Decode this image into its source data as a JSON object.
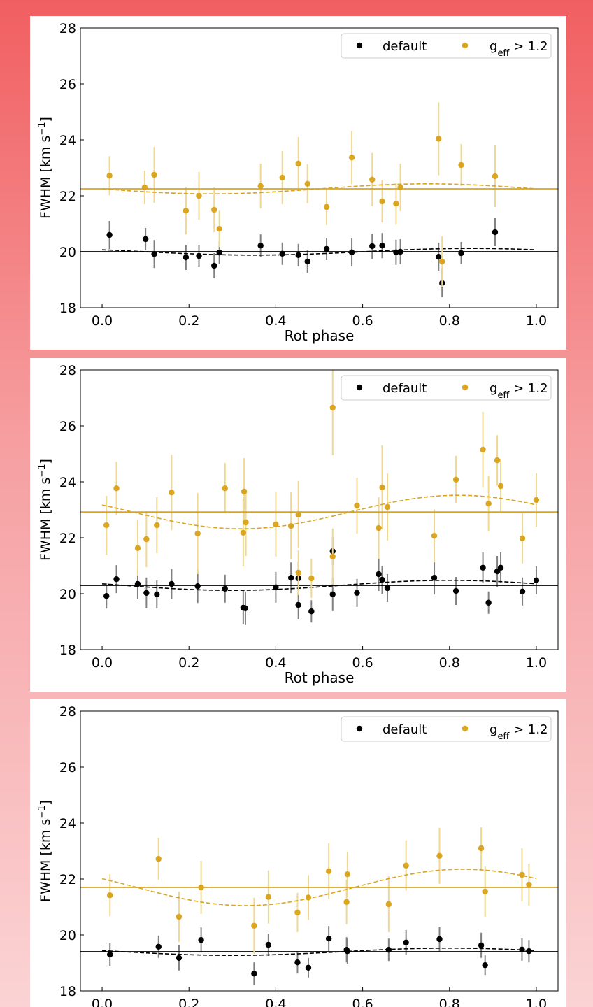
{
  "colors": {
    "default": "#000000",
    "geff": "#daa520",
    "default_err": "#808080",
    "geff_err": "#f0d890"
  },
  "chart_data": [
    {
      "type": "scatter",
      "xlabel": "Rot phase",
      "ylabel": "FWHM [km s",
      "ylabel_sup": "−1",
      "ylabel_end": "]",
      "xlim": [
        -0.05,
        1.05
      ],
      "ylim": [
        18,
        28
      ],
      "xticks": [
        "0.0",
        "0.2",
        "0.4",
        "0.6",
        "0.8",
        "1.0"
      ],
      "yticks": [
        "18",
        "20",
        "22",
        "24",
        "26",
        "28"
      ],
      "legend": {
        "default": "default",
        "geff_main": "g",
        "geff_sub": "eff",
        "geff_rest": " > 1.2",
        "position": "top-right"
      },
      "series": [
        {
          "key": "default",
          "name": "default",
          "mean": 20.0,
          "sine_amp": 0.12,
          "sine_peak": 0.85,
          "x": [
            0.017,
            0.1,
            0.12,
            0.193,
            0.223,
            0.258,
            0.27,
            0.365,
            0.415,
            0.452,
            0.473,
            0.517,
            0.575,
            0.622,
            0.645,
            0.677,
            0.687,
            0.775,
            0.783,
            0.827,
            0.905
          ],
          "y": [
            20.6,
            20.45,
            19.92,
            19.8,
            19.85,
            19.5,
            19.97,
            20.22,
            19.93,
            19.88,
            19.65,
            20.1,
            19.98,
            20.2,
            20.22,
            19.98,
            20.0,
            19.82,
            18.88,
            19.95,
            20.7
          ],
          "err": [
            0.5,
            0.4,
            0.5,
            0.45,
            0.4,
            0.45,
            0.4,
            0.4,
            0.4,
            0.4,
            0.4,
            0.4,
            0.5,
            0.45,
            0.45,
            0.45,
            0.45,
            0.5,
            0.5,
            0.4,
            0.5
          ]
        },
        {
          "key": "geff",
          "name": "g_eff > 1.2",
          "mean": 22.25,
          "sine_amp": 0.18,
          "sine_peak": 0.75,
          "x": [
            0.017,
            0.098,
            0.12,
            0.193,
            0.223,
            0.258,
            0.27,
            0.365,
            0.415,
            0.452,
            0.473,
            0.517,
            0.575,
            0.622,
            0.645,
            0.677,
            0.687,
            0.775,
            0.783,
            0.827,
            0.905
          ],
          "y": [
            22.72,
            22.3,
            22.75,
            21.47,
            22.0,
            21.5,
            20.82,
            22.35,
            22.65,
            23.15,
            22.43,
            21.6,
            23.37,
            22.58,
            21.8,
            21.72,
            22.3,
            24.04,
            19.65,
            23.1,
            22.7
          ],
          "err": [
            0.7,
            0.6,
            1.0,
            0.85,
            0.85,
            0.8,
            0.65,
            0.8,
            0.95,
            0.95,
            0.7,
            0.65,
            0.95,
            0.95,
            0.75,
            0.75,
            0.85,
            1.3,
            0.9,
            0.75,
            1.1
          ]
        }
      ]
    },
    {
      "type": "scatter",
      "xlabel": "Rot phase",
      "ylabel": "FWHM [km s",
      "ylabel_sup": "−1",
      "ylabel_end": "]",
      "xlim": [
        -0.05,
        1.05
      ],
      "ylim": [
        18,
        28
      ],
      "xticks": [
        "0.0",
        "0.2",
        "0.4",
        "0.6",
        "0.8",
        "1.0"
      ],
      "yticks": [
        "18",
        "20",
        "22",
        "24",
        "26",
        "28"
      ],
      "legend": {
        "default": "default",
        "geff_main": "g",
        "geff_sub": "eff",
        "geff_rest": " > 1.2",
        "position": "top-right"
      },
      "series": [
        {
          "key": "default",
          "name": "default",
          "mean": 20.3,
          "sine_amp": 0.18,
          "sine_peak": 0.8,
          "x": [
            0.01,
            0.033,
            0.082,
            0.102,
            0.126,
            0.16,
            0.22,
            0.283,
            0.325,
            0.33,
            0.4,
            0.435,
            0.452,
            0.452,
            0.482,
            0.531,
            0.531,
            0.587,
            0.637,
            0.645,
            0.657,
            0.765,
            0.815,
            0.877,
            0.89,
            0.91,
            0.918,
            0.968,
            1.0
          ],
          "y": [
            19.92,
            20.52,
            20.35,
            20.03,
            19.98,
            20.35,
            20.27,
            20.18,
            19.5,
            19.48,
            20.23,
            20.57,
            20.55,
            19.6,
            19.37,
            19.98,
            21.52,
            20.03,
            20.7,
            20.5,
            20.2,
            20.57,
            20.1,
            20.93,
            19.68,
            20.8,
            20.93,
            20.08,
            20.48
          ],
          "err": [
            0.45,
            0.5,
            0.55,
            0.55,
            0.5,
            0.55,
            0.6,
            0.5,
            0.6,
            0.6,
            0.55,
            0.55,
            0.6,
            0.5,
            0.4,
            0.6,
            0.5,
            0.5,
            0.6,
            0.5,
            0.5,
            0.6,
            0.5,
            0.55,
            0.4,
            0.55,
            0.55,
            0.5,
            0.5
          ]
        },
        {
          "key": "geff",
          "name": "g_eff > 1.2",
          "mean": 22.92,
          "sine_amp": 0.6,
          "sine_peak": 0.82,
          "x": [
            0.01,
            0.033,
            0.082,
            0.102,
            0.126,
            0.16,
            0.22,
            0.283,
            0.325,
            0.327,
            0.331,
            0.4,
            0.435,
            0.452,
            0.452,
            0.482,
            0.531,
            0.531,
            0.587,
            0.637,
            0.645,
            0.657,
            0.765,
            0.815,
            0.877,
            0.89,
            0.91,
            0.918,
            0.968,
            1.0
          ],
          "y": [
            22.45,
            23.77,
            21.63,
            21.95,
            22.45,
            23.62,
            22.15,
            23.77,
            22.18,
            23.65,
            22.55,
            22.48,
            22.42,
            22.83,
            20.75,
            20.55,
            26.65,
            21.33,
            23.15,
            22.35,
            23.8,
            23.1,
            22.07,
            24.08,
            25.15,
            23.22,
            24.77,
            23.85,
            21.98,
            23.35
          ],
          "err": [
            1.05,
            0.95,
            1.0,
            1.0,
            1.0,
            1.35,
            1.45,
            0.9,
            1.2,
            1.2,
            1.2,
            1.15,
            1.2,
            1.2,
            0.8,
            0.7,
            1.7,
            1.0,
            1.0,
            1.1,
            1.5,
            1.2,
            0.95,
            0.85,
            1.35,
            1.0,
            0.9,
            0.95,
            0.9,
            0.95
          ]
        }
      ]
    },
    {
      "type": "scatter",
      "xlim": [
        -0.05,
        1.05
      ],
      "ylim": [
        18,
        28
      ],
      "xticks": [
        "0.0",
        "0.2",
        "0.4",
        "0.6",
        "0.8",
        "1.0"
      ],
      "yticks": [
        "18",
        "20",
        "22",
        "24",
        "26",
        "28"
      ],
      "ylabel": "FWHM [km s",
      "ylabel_sup": "−1",
      "ylabel_end": "]",
      "legend": {
        "default": "default",
        "geff_main": "g",
        "geff_sub": "eff",
        "geff_rest": " > 1.2",
        "position": "top-right"
      },
      "series": [
        {
          "key": "default",
          "name": "default",
          "mean": 19.4,
          "sine_amp": 0.13,
          "sine_peak": 0.8,
          "x": [
            0.018,
            0.13,
            0.177,
            0.228,
            0.35,
            0.383,
            0.45,
            0.475,
            0.522,
            0.563,
            0.565,
            0.66,
            0.7,
            0.777,
            0.873,
            0.882,
            0.967,
            0.983
          ],
          "y": [
            19.3,
            19.58,
            19.18,
            19.82,
            18.62,
            19.65,
            19.02,
            18.83,
            19.87,
            19.47,
            19.42,
            19.47,
            19.73,
            19.85,
            19.63,
            18.92,
            19.48,
            19.42
          ],
          "err": [
            0.4,
            0.4,
            0.45,
            0.45,
            0.4,
            0.4,
            0.4,
            0.35,
            0.45,
            0.45,
            0.45,
            0.4,
            0.45,
            0.45,
            0.45,
            0.35,
            0.4,
            0.4
          ]
        },
        {
          "key": "geff",
          "name": "g_eff > 1.2",
          "mean": 21.7,
          "sine_amp": 0.65,
          "sine_peak": 0.83,
          "x": [
            0.018,
            0.13,
            0.177,
            0.228,
            0.35,
            0.383,
            0.45,
            0.475,
            0.522,
            0.563,
            0.565,
            0.66,
            0.7,
            0.777,
            0.873,
            0.882,
            0.967,
            0.983
          ],
          "y": [
            21.42,
            22.72,
            20.65,
            21.7,
            20.33,
            21.36,
            20.8,
            21.34,
            22.28,
            21.18,
            22.17,
            21.1,
            22.48,
            22.83,
            23.1,
            21.55,
            22.15,
            21.8
          ],
          "err": [
            0.75,
            0.75,
            0.9,
            0.95,
            1.0,
            0.95,
            0.7,
            0.8,
            1.0,
            0.8,
            0.8,
            1.0,
            0.9,
            1.0,
            0.75,
            0.9,
            0.95,
            0.75
          ]
        }
      ]
    }
  ]
}
